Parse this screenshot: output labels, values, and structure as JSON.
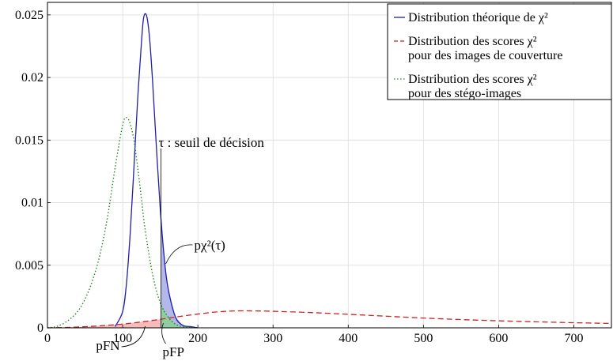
{
  "chart_data": {
    "type": "line",
    "xlim": [
      0,
      750
    ],
    "ylim": [
      0,
      0.026
    ],
    "grid": true,
    "legend_position": "top-right",
    "x_ticks": [
      0,
      100,
      200,
      300,
      400,
      500,
      600,
      700
    ],
    "x_tick_labels": [
      "0",
      "100",
      "200",
      "300",
      "400",
      "500",
      "600",
      "700"
    ],
    "y_ticks": [
      0,
      0.005,
      0.01,
      0.015,
      0.02,
      0.025
    ],
    "y_tick_labels": [
      "0",
      "0.005",
      "0.01",
      "0.015",
      "0.02",
      "0.025"
    ],
    "threshold": 151,
    "series": [
      {
        "name": "Distribution théorique de χ²",
        "color": "#1f1fa8",
        "style": "solid",
        "x": [
          90,
          100,
          105,
          110,
          115,
          120,
          125,
          128,
          132,
          136,
          140,
          145,
          150,
          155,
          160,
          170,
          180,
          190,
          200
        ],
        "y": [
          0.0001,
          0.0013,
          0.0035,
          0.0075,
          0.0128,
          0.0183,
          0.0228,
          0.0248,
          0.0249,
          0.023,
          0.0195,
          0.0143,
          0.0095,
          0.0058,
          0.0033,
          0.0009,
          0.0002,
          0.0001,
          0.0
        ]
      },
      {
        "name": "Distribution des scores χ² pour des images de couverture",
        "color": "#cc2222",
        "style": "dashed",
        "x": [
          0,
          25,
          50,
          75,
          100,
          125,
          150,
          175,
          200,
          225,
          250,
          275,
          300,
          350,
          400,
          450,
          500,
          550,
          600,
          650,
          700,
          750
        ],
        "y": [
          0.0,
          3e-05,
          9e-05,
          0.00018,
          0.0003,
          0.00047,
          0.00068,
          0.0009,
          0.0011,
          0.00127,
          0.00135,
          0.00135,
          0.00132,
          0.00122,
          0.00108,
          0.00093,
          0.00078,
          0.00066,
          0.00056,
          0.00048,
          0.00041,
          0.00035
        ]
      },
      {
        "name": "Distribution des scores χ² pour des stégo-images",
        "color": "#228822",
        "style": "dotted",
        "x": [
          0,
          10,
          20,
          30,
          40,
          50,
          60,
          70,
          80,
          90,
          100,
          105,
          110,
          115,
          120,
          125,
          130,
          140,
          150,
          160,
          170,
          180,
          200
        ],
        "y": [
          0.0,
          8e-05,
          0.0003,
          0.0007,
          0.0013,
          0.0023,
          0.0038,
          0.0059,
          0.0089,
          0.0128,
          0.0162,
          0.0168,
          0.0163,
          0.015,
          0.0128,
          0.0103,
          0.0078,
          0.0042,
          0.002,
          0.0009,
          0.0003,
          0.0001,
          0.0
        ]
      }
    ],
    "annotations": {
      "threshold_label": "τ : seuil de décision",
      "p_label": "pχ²(τ)",
      "pfn_label": "pFN",
      "pfp_label": "pFP"
    }
  }
}
